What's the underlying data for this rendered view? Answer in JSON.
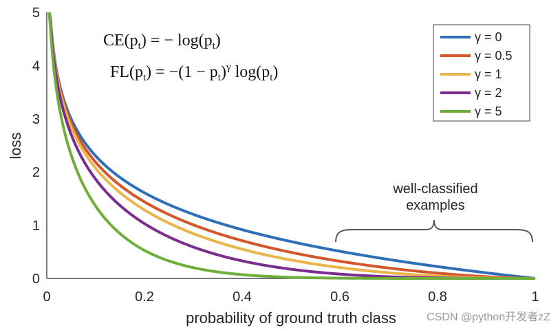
{
  "chart_data": {
    "type": "line",
    "xlabel": "probability of ground truth class",
    "ylabel": "loss",
    "xlim": [
      0,
      1
    ],
    "ylim": [
      0,
      5
    ],
    "xticks": [
      "0",
      "0.2",
      "0.4",
      "0.6",
      "0.8",
      "1"
    ],
    "yticks": [
      "0",
      "1",
      "2",
      "3",
      "4",
      "5"
    ],
    "grid": false,
    "legend_position": "top-right",
    "x": [
      0.05,
      0.1,
      0.2,
      0.3,
      0.4,
      0.5,
      0.6,
      0.7,
      0.8,
      0.9,
      1.0
    ],
    "series": [
      {
        "name": "γ = 0",
        "color": "#2e6fba",
        "gamma": 0,
        "values": [
          3.0,
          2.3,
          1.61,
          1.2,
          0.92,
          0.69,
          0.51,
          0.36,
          0.22,
          0.11,
          0.0
        ]
      },
      {
        "name": "γ = 0.5",
        "color": "#d4562b",
        "gamma": 0.5,
        "values": [
          2.92,
          2.18,
          1.44,
          1.01,
          0.71,
          0.49,
          0.32,
          0.19,
          0.1,
          0.03,
          0.0
        ]
      },
      {
        "name": "γ = 1",
        "color": "#eab54a",
        "gamma": 1,
        "values": [
          2.85,
          2.07,
          1.29,
          0.84,
          0.55,
          0.35,
          0.2,
          0.11,
          0.04,
          0.01,
          0.0
        ]
      },
      {
        "name": "γ = 2",
        "color": "#7b2d8e",
        "gamma": 2,
        "values": [
          2.7,
          1.86,
          1.03,
          0.59,
          0.33,
          0.17,
          0.08,
          0.03,
          0.01,
          0.0,
          0.0
        ]
      },
      {
        "name": "γ = 5",
        "color": "#6fae3b",
        "gamma": 5,
        "values": [
          2.32,
          1.36,
          0.53,
          0.2,
          0.07,
          0.02,
          0.01,
          0.0,
          0.0,
          0.0,
          0.0
        ]
      }
    ],
    "annotations": {
      "formula_ce": {
        "lhs": "CE(p",
        "sub": "t",
        "rhs": ") = − log(p",
        "sub2": "t",
        "end": ")"
      },
      "formula_fl": {
        "lhs": "FL(p",
        "sub": "t",
        "mid": ") = −(1 − p",
        "sub2": "t",
        "exp_text": ")",
        "gamma": "γ",
        "log": " log(p",
        "sub3": "t",
        "end": ")"
      },
      "brace_label_1": "well-classified",
      "brace_label_2": "examples",
      "brace_x_range": [
        0.6,
        1.0
      ]
    }
  },
  "watermark": "CSDN @python开发者zZ"
}
